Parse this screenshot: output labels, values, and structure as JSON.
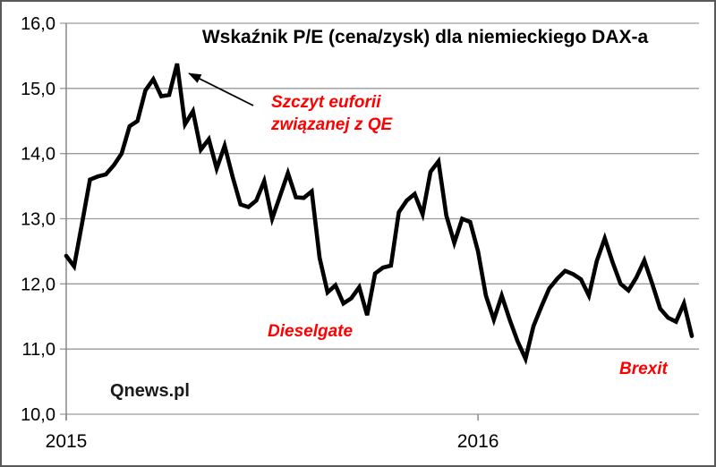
{
  "window": {
    "background": "#ffffff",
    "border_color": "#595959"
  },
  "chart_data": {
    "type": "line",
    "title": "Wskaźnik P/E (cena/zysk) dla niemieckiego DAX-a",
    "series_name": "Wskaźnik P/E dla DAX",
    "x_unit": "week",
    "x_range_note": "weekly data from start of 2015 to mid 2016",
    "values": [
      12.43,
      12.27,
      12.93,
      13.6,
      13.65,
      13.68,
      13.82,
      14.0,
      14.42,
      14.5,
      14.97,
      15.14,
      14.88,
      14.9,
      15.38,
      14.45,
      14.65,
      14.06,
      14.22,
      13.77,
      14.12,
      13.65,
      13.22,
      13.18,
      13.28,
      13.58,
      13.0,
      13.35,
      13.7,
      13.33,
      13.32,
      13.42,
      12.4,
      11.87,
      11.98,
      11.7,
      11.78,
      11.95,
      11.52,
      12.16,
      12.25,
      12.28,
      13.1,
      13.28,
      13.38,
      13.07,
      13.72,
      13.88,
      13.05,
      12.63,
      13.0,
      12.95,
      12.5,
      11.82,
      11.45,
      11.82,
      11.45,
      11.12,
      10.85,
      11.35,
      11.65,
      11.93,
      12.08,
      12.2,
      12.15,
      12.07,
      11.82,
      12.35,
      12.7,
      12.33,
      12.0,
      11.9,
      12.1,
      12.36,
      12.0,
      11.62,
      11.48,
      11.42,
      11.7,
      11.2
    ],
    "x_tick_labels": [
      {
        "label": "2015",
        "index": 0
      },
      {
        "label": "2016",
        "index": 52
      }
    ],
    "y_ticks": [
      {
        "label": "16,0",
        "value": 16.0
      },
      {
        "label": "15,0",
        "value": 15.0
      },
      {
        "label": "14,0",
        "value": 14.0
      },
      {
        "label": "13,0",
        "value": 13.0
      },
      {
        "label": "12,0",
        "value": 12.0
      },
      {
        "label": "11,0",
        "value": 11.0
      },
      {
        "label": "10,0",
        "value": 10.0
      }
    ],
    "ylim": [
      10.0,
      16.0
    ],
    "grid": "horizontal",
    "legend": "none",
    "line_color": "#000000",
    "grid_color": "#9a9a9a",
    "axis_color": "#808080",
    "text_color": "#000000",
    "annotation_color": "#ff0000",
    "annotations": {
      "qe_peak": {
        "line1": "Szczyt euforii",
        "line2": "związanej z QE"
      },
      "dieselgate": {
        "text": "Dieselgate"
      },
      "brexit": {
        "text": "Brexit"
      },
      "source": {
        "text": "Qnews.pl"
      }
    }
  }
}
